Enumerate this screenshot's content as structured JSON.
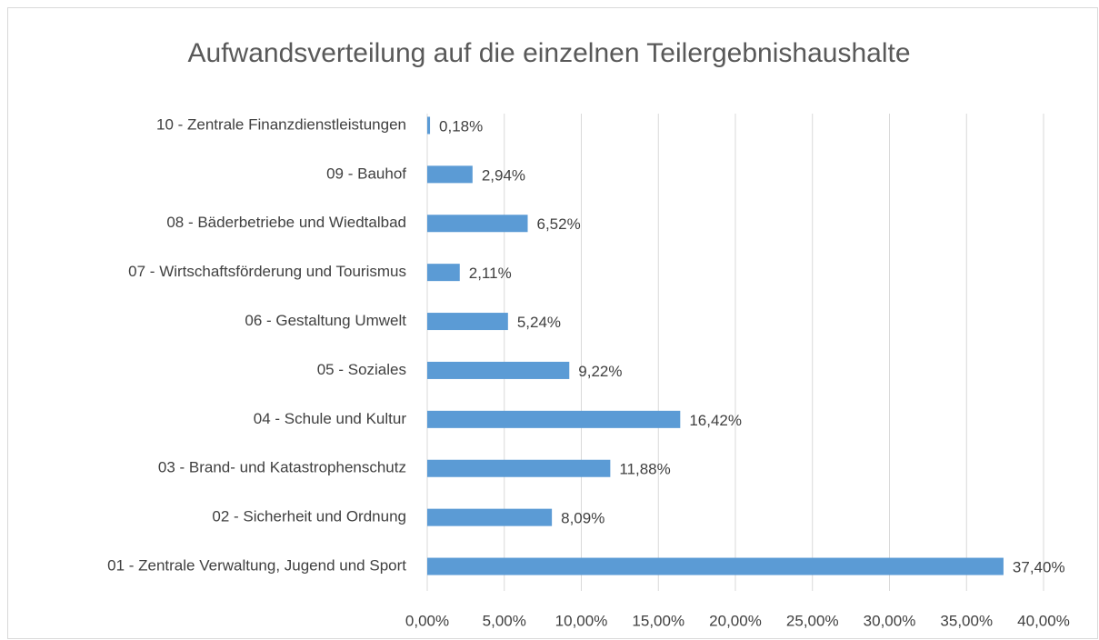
{
  "chart_data": {
    "type": "barh",
    "title": "Aufwandsverteilung auf die einzelnen Teilergebnishaushalte",
    "categories": [
      "01 - Zentrale Verwaltung, Jugend und Sport",
      "02 - Sicherheit und Ordnung",
      "03 - Brand- und Katastrophenschutz",
      "04 - Schule und Kultur",
      "05 - Soziales",
      "06 - Gestaltung Umwelt",
      "07 - Wirtschaftsförderung und Tourismus",
      "08 - Bäderbetriebe und Wiedtalbad",
      "09 - Bauhof",
      "10 - Zentrale Finanzdienstleistungen"
    ],
    "values": [
      37.4,
      8.09,
      11.88,
      16.42,
      9.22,
      5.24,
      2.11,
      6.52,
      2.94,
      0.18
    ],
    "value_labels": [
      "37,40%",
      "8,09%",
      "11,88%",
      "16,42%",
      "9,22%",
      "5,24%",
      "2,11%",
      "6,52%",
      "2,94%",
      "0,18%"
    ],
    "color": "#5b9bd5",
    "xlim": [
      0,
      40
    ],
    "xticks": [
      {
        "value": 0,
        "label": "0,00%"
      },
      {
        "value": 5,
        "label": "5,00%"
      },
      {
        "value": 10,
        "label": "10,00%"
      },
      {
        "value": 15,
        "label": "15,00%"
      },
      {
        "value": 20,
        "label": "20,00%"
      },
      {
        "value": 25,
        "label": "25,00%"
      },
      {
        "value": 30,
        "label": "30,00%"
      },
      {
        "value": 35,
        "label": "35,00%"
      },
      {
        "value": 40,
        "label": "40,00%"
      }
    ],
    "grid": true
  }
}
